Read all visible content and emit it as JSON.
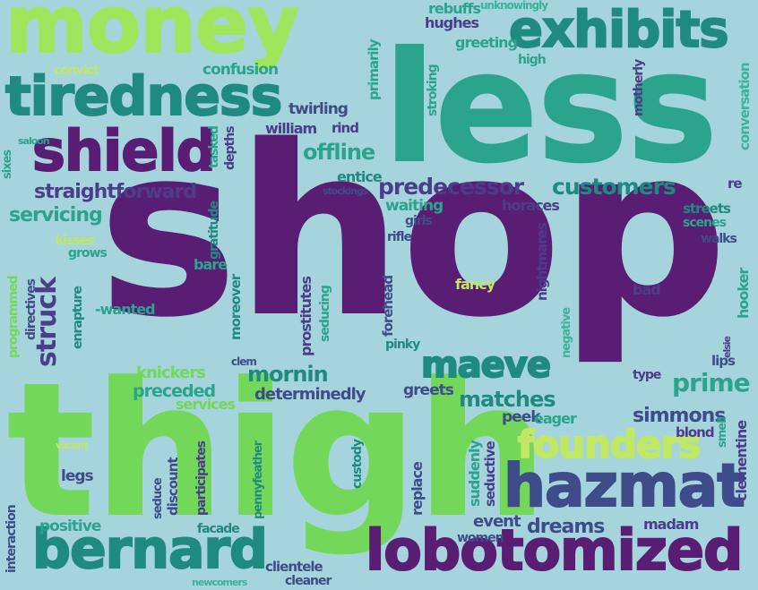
{
  "words": {
    "shop": "shop",
    "thigh": "thigh",
    "less": "less",
    "money": "money",
    "tiredness": "tiredness",
    "exhibits": "exhibits",
    "shield": "shield",
    "bernard": "bernard",
    "lobotomized": "lobotomized",
    "hazmat": "hazmat",
    "founders": "founders",
    "maeve": "maeve",
    "prime": "prime",
    "customers": "customers",
    "predecessor": "predecessor",
    "straightforward": "straightforward",
    "servicing": "servicing",
    "struck": "struck",
    "mornin": "mornin",
    "matches": "matches",
    "simmons": "simmons",
    "dreams": "dreams",
    "offline": "offline",
    "determinedly": "determinedly",
    "preceded": "preceded",
    "knickers": "knickers",
    "services": "services",
    "positive": "positive",
    "interaction": "interaction",
    "legs": "legs",
    "vacant": "vacant",
    "seduce": "seduce",
    "discount": "discount",
    "participates": "participates",
    "pennyfeather": "pennyfeather",
    "custody": "custody",
    "replace": "replace",
    "suddenly": "suddenly",
    "seductive": "seductive",
    "event": "event",
    "women": "women",
    "madam": "madam",
    "clementine": "clementine",
    "smell": "smell",
    "blond": "blond",
    "eager": "eager",
    "peek": "peek",
    "greets": "greets",
    "facade": "facade",
    "clientele": "clientele",
    "cleaner": "cleaner",
    "newcomers": "newcomers",
    "convict": "convict",
    "confusion": "confusion",
    "twirling": "twirling",
    "william": "william",
    "rind": "rind",
    "saloon": "saloon",
    "sixes": "sixes",
    "tasked": "tasked",
    "depths": "depths",
    "primarily": "primarily",
    "stroking": "stroking",
    "rebuffs": "rebuffs",
    "unknowingly": "unknowingly",
    "hughes": "hughes",
    "greeting": "greeting",
    "high": "high",
    "motherly": "motherly",
    "conversation": "conversation",
    "entice": "entice",
    "stockings": "stockings",
    "waiting": "waiting",
    "horaces": "horaces",
    "girls": "girls",
    "rifle": "rifle",
    "nightmares": "nightmares",
    "streets": "streets",
    "scenes": "scenes",
    "walks": "walks",
    "re": "re",
    "kisses": "kisses",
    "grows": "grows",
    "gratitude": "gratitude",
    "bare": "bare",
    "moreover": "moreover",
    "prostitutes": "prostitutes",
    "seducing": "seducing",
    "forehead": "forehead",
    "fancy": "fancy",
    "bad": "bad",
    "hooker": "hooker",
    "negative": "negative",
    "elsie": "elsie",
    "lips": "lips",
    "type": "type",
    "pinky": "pinky",
    "clem": "clem",
    "programmed": "programmed",
    "directives": "directives",
    "enrapture": "enrapture",
    "wanted": "-wanted"
  },
  "colors": {
    "background": "#a6d4dc",
    "purple": "#5a1d74",
    "dark_teal": "#1f8a80",
    "teal": "#2aa48c",
    "green": "#73d85a",
    "light_green": "#a0e55c",
    "navy": "#3e4d8a",
    "blue": "#3d6d96",
    "indigo": "#4b3d8a",
    "lime": "#c0e864",
    "sea": "#3bb29a"
  }
}
